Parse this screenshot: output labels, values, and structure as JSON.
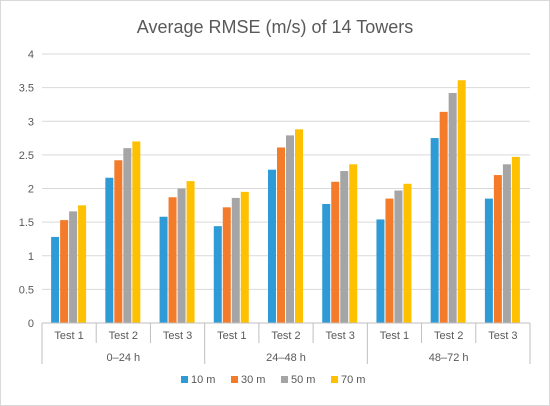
{
  "chart_data": {
    "type": "bar",
    "title": "Average RMSE (m/s) of 14 Towers",
    "xlabel": "",
    "ylabel": "",
    "ylim": [
      0,
      4
    ],
    "yticks": [
      "0",
      "0.5",
      "1",
      "1.5",
      "2",
      "2.5",
      "3",
      "3.5",
      "4"
    ],
    "grid": true,
    "legend_position": "bottom",
    "groups": [
      "0–24 h",
      "24–48 h",
      "48–72 h"
    ],
    "categories": [
      "Test 1",
      "Test 2",
      "Test 3",
      "Test 1",
      "Test 2",
      "Test 3",
      "Test 1",
      "Test 2",
      "Test 3"
    ],
    "series": [
      {
        "name": "10 m",
        "color": "#2e9bd6",
        "values": [
          1.28,
          2.16,
          1.58,
          1.44,
          2.28,
          1.77,
          1.54,
          2.75,
          1.85
        ]
      },
      {
        "name": "30 m",
        "color": "#f47b2a",
        "values": [
          1.53,
          2.42,
          1.87,
          1.72,
          2.61,
          2.1,
          1.85,
          3.14,
          2.2
        ]
      },
      {
        "name": "50 m",
        "color": "#a5a5a5",
        "values": [
          1.66,
          2.6,
          2.0,
          1.86,
          2.79,
          2.26,
          1.97,
          3.42,
          2.36
        ]
      },
      {
        "name": "70 m",
        "color": "#ffc000",
        "values": [
          1.75,
          2.7,
          2.11,
          1.95,
          2.88,
          2.36,
          2.07,
          3.61,
          2.47
        ]
      }
    ]
  }
}
